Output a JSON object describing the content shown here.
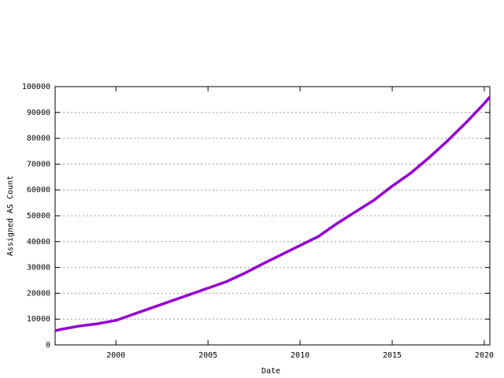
{
  "chart_data": {
    "type": "line",
    "x_label": "Date",
    "y_label": "Assigned AS Count",
    "x": [
      1996.7,
      1997,
      1998,
      1999,
      2000,
      2001,
      2002,
      2003,
      2004,
      2005,
      2006,
      2007,
      2008,
      2009,
      2010,
      2011,
      2012,
      2013,
      2014,
      2015,
      2016,
      2017,
      2018,
      2019,
      2020,
      2020.3
    ],
    "series": [
      {
        "color": "#9400d3",
        "values": [
          5500,
          6000,
          7300,
          8200,
          9500,
          12000,
          14500,
          17000,
          19500,
          22000,
          24500,
          27800,
          31500,
          35000,
          38500,
          42000,
          47000,
          51500,
          56000,
          61500,
          66500,
          72500,
          79000,
          86000,
          93500,
          96000
        ]
      }
    ],
    "xlim": [
      1996.7,
      2020.3
    ],
    "xticks": [
      2000,
      2005,
      2010,
      2015,
      2020
    ],
    "ylim": [
      0,
      100000
    ],
    "yticks": [
      0,
      10000,
      20000,
      30000,
      40000,
      50000,
      60000,
      70000,
      80000,
      90000,
      100000
    ],
    "grid": true
  }
}
